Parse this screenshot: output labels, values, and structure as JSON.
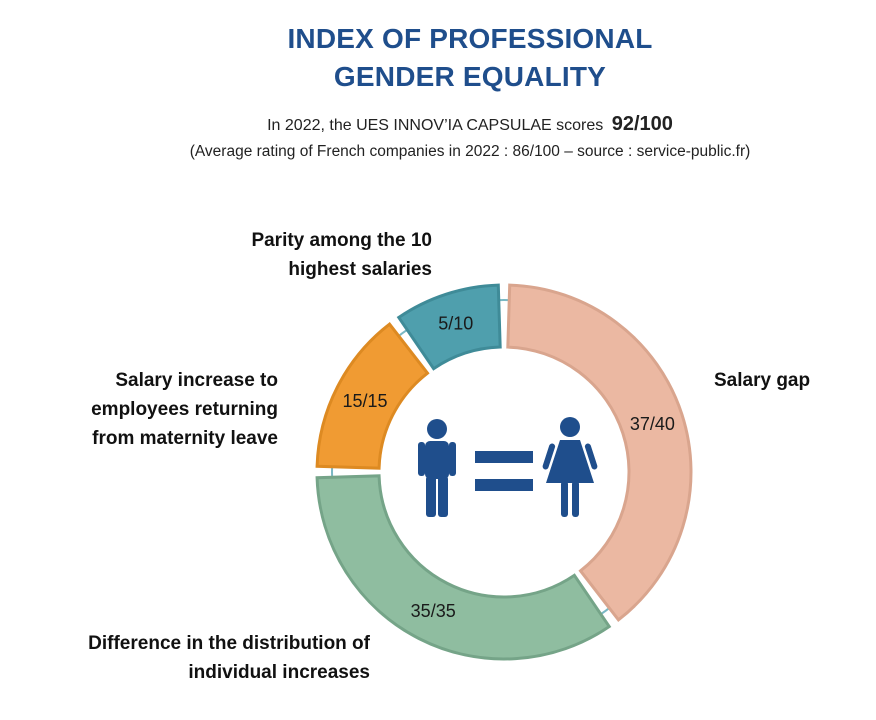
{
  "title": {
    "line1": "INDEX OF PROFESSIONAL",
    "line2": "GENDER EQUALITY"
  },
  "score_line": {
    "prefix": "In 2022, the UES INNOV’IA CAPSULAE scores",
    "score": "92/100"
  },
  "average_line": "(Average rating of French companies  in 2022 : 86/100 – source : service-public.fr)",
  "chart_data": {
    "type": "pie",
    "variant": "donut",
    "total_score": 92,
    "total_max": 100,
    "segments": [
      {
        "label_lines": [
          "Salary gap"
        ],
        "score": 37,
        "max": 40,
        "value_label": "37/40",
        "color": "#ebb8a2",
        "border": "#d9a58e"
      },
      {
        "label_lines": [
          "Difference in the distribution of",
          "individual increases"
        ],
        "score": 35,
        "max": 35,
        "value_label": "35/35",
        "color": "#8fbda0",
        "border": "#75a488"
      },
      {
        "label_lines": [
          "Salary increase to",
          "employees returning",
          "from maternity leave"
        ],
        "score": 15,
        "max": 15,
        "value_label": "15/15",
        "color": "#f09b33",
        "border": "#dd8a22"
      },
      {
        "label_lines": [
          "Parity among the 10",
          "highest salaries"
        ],
        "score": 5,
        "max": 10,
        "value_label": "5/10",
        "color": "#4f9fad",
        "border": "#3f8b98"
      }
    ],
    "icons": [
      "man-icon",
      "equals-icon",
      "woman-icon"
    ],
    "icon_color": "#1f4e8c"
  }
}
